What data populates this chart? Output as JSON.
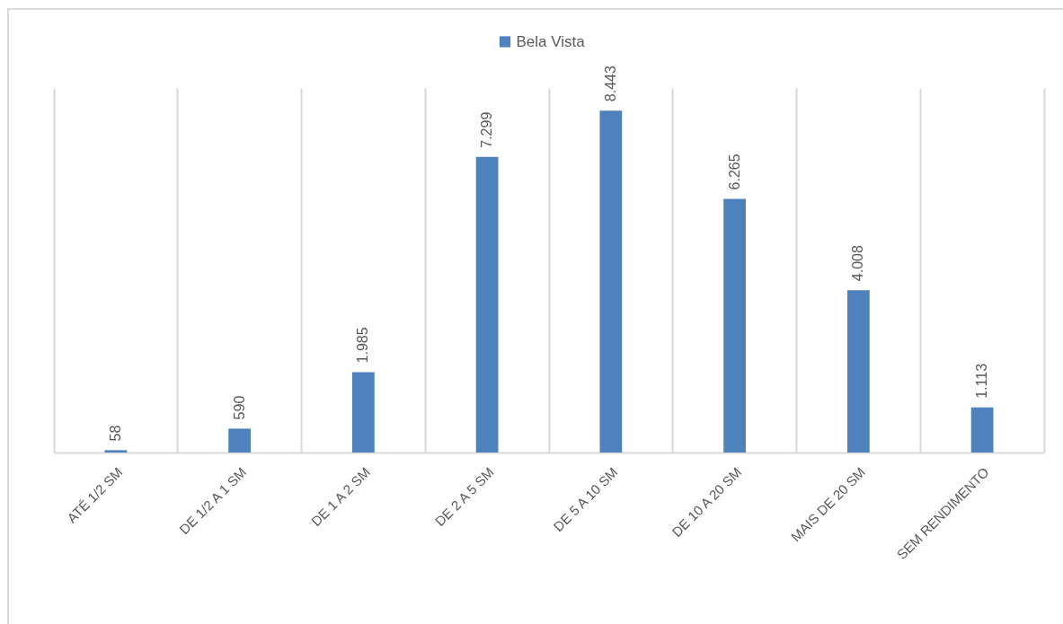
{
  "chart_data": {
    "type": "bar",
    "categories": [
      "ATÉ 1/2 SM",
      "DE 1/2 A 1 SM",
      "DE 1 A 2 SM",
      "DE 2 A 5 SM",
      "DE 5 A 10 SM",
      "DE 10 A 20 SM",
      "MAIS DE 20 SM",
      "SEM RENDIMENTO"
    ],
    "series": [
      {
        "name": "Bela Vista",
        "color": "#4f81bd",
        "values": [
          58,
          590,
          1985,
          7299,
          8443,
          6265,
          4008,
          1113
        ],
        "value_labels": [
          "58",
          "590",
          "1.985",
          "7.299",
          "8.443",
          "6.265",
          "4.008",
          "1.113"
        ]
      }
    ],
    "legend": "top",
    "grid": "x"
  }
}
